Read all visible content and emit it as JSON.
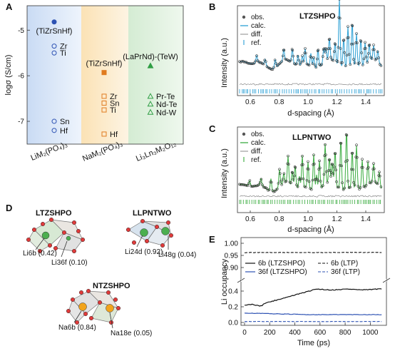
{
  "panels": {
    "A": "A",
    "B": "B",
    "C": "C",
    "D": "D",
    "E": "E"
  },
  "colors": {
    "blue": "#2d52b3",
    "orange": "#e07b1f",
    "green": "#2f9e44",
    "cyan": "#3ba7d8",
    "lgreen": "#49b24e"
  },
  "panel_a": {
    "ylabel": "logσ (S/cm)",
    "yticks": [
      "-5",
      "-6",
      "-7"
    ],
    "groups": [
      {
        "name": "LiM₂(PO₄)₃"
      },
      {
        "name": "NaM₂(PO₄)₃"
      },
      {
        "name": "Li₃Ln₃M₂O₁₂"
      }
    ],
    "points": [
      {
        "group": 0,
        "label": "(TiZrSnHf)",
        "y": -4.82,
        "filled": true,
        "label_pos": "below"
      },
      {
        "group": 0,
        "label": "Zr",
        "y": -5.35,
        "filled": false,
        "label_pos": "right"
      },
      {
        "group": 0,
        "label": "Ti",
        "y": -5.5,
        "filled": false,
        "label_pos": "right"
      },
      {
        "group": 0,
        "label": "Sn",
        "y": -7.0,
        "filled": false,
        "label_pos": "right"
      },
      {
        "group": 0,
        "label": "Hf",
        "y": -7.2,
        "filled": false,
        "label_pos": "right"
      },
      {
        "group": 1,
        "label": "(TiZrSnHf)",
        "y": -5.93,
        "filled": true,
        "label_pos": "above"
      },
      {
        "group": 1,
        "label": "Zr",
        "y": -6.45,
        "filled": false,
        "label_pos": "right"
      },
      {
        "group": 1,
        "label": "Sn",
        "y": -6.6,
        "filled": false,
        "label_pos": "right"
      },
      {
        "group": 1,
        "label": "Ti",
        "y": -6.75,
        "filled": false,
        "label_pos": "right"
      },
      {
        "group": 1,
        "label": "Hf",
        "y": -7.28,
        "filled": false,
        "label_pos": "right"
      },
      {
        "group": 2,
        "label": "(LaPrNd)-(TeW)",
        "y": -5.78,
        "filled": true,
        "label_pos": "above"
      },
      {
        "group": 2,
        "label": "Pr-Te",
        "y": -6.45,
        "filled": false,
        "label_pos": "right"
      },
      {
        "group": 2,
        "label": "Nd-Te",
        "y": -6.62,
        "filled": false,
        "label_pos": "right"
      },
      {
        "group": 2,
        "label": "Nd-W",
        "y": -6.8,
        "filled": false,
        "label_pos": "right"
      }
    ]
  },
  "panel_b": {
    "title": "LTZSHPO",
    "legend": [
      "obs.",
      "calc.",
      "diff.",
      "ref."
    ],
    "ylabel": "Intensity (a.u.)",
    "xlabel": "d-spacing (Å)",
    "xticks": [
      "0.6",
      "0.8",
      "1.0",
      "1.2",
      "1.4"
    ]
  },
  "panel_c": {
    "title": "LLPNTWO",
    "legend": [
      "obs.",
      "calc.",
      "diff.",
      "ref."
    ],
    "ylabel": "Intensity (a.u.)",
    "xlabel": "d-spacing (Å)",
    "xticks": [
      "0.6",
      "0.8",
      "1.0",
      "1.2",
      "1.4"
    ]
  },
  "panel_d": {
    "structures": [
      {
        "title": "LTZSHPO",
        "sites": [
          "Li6b (0.42)",
          "Li36f (0.10)"
        ]
      },
      {
        "title": "LLPNTWO",
        "sites": [
          "Li24d (0.92)",
          "Li48g (0.04)"
        ]
      },
      {
        "title": "NTZSHPO",
        "sites": [
          "Na6b (0.84)",
          "Na18e (0.05)"
        ]
      }
    ]
  },
  "panel_e": {
    "ylabel": "Li occupancy",
    "xlabel": "Time (ps)",
    "yticks_top": [
      "1.00",
      "0.95",
      "0.90"
    ],
    "yticks_bottom": [
      "0.4",
      "0.2",
      "0.0"
    ],
    "xticks": [
      "0",
      "200",
      "400",
      "600",
      "800",
      "1000"
    ],
    "legend": [
      "6b (LTZSHPO)",
      "6b (LTP)",
      "36f (LTZSHPO)",
      "36f (LTP)"
    ]
  }
}
